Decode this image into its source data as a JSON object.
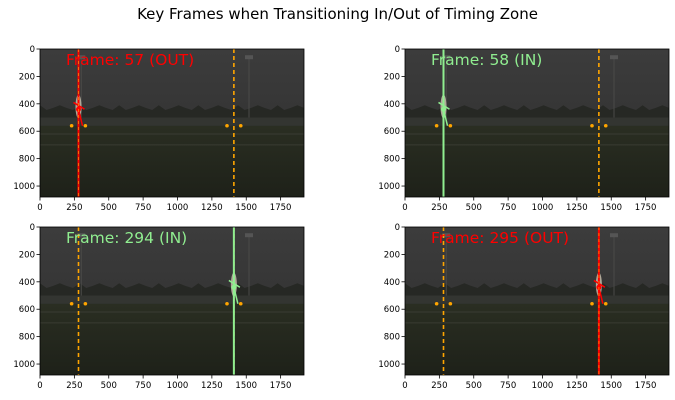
{
  "figure": {
    "suptitle": "Key Frames when Transitioning In/Out of Timing Zone"
  },
  "colors": {
    "in": "#90ee90",
    "out": "#ff0000",
    "zone_boundary": "#ffa500",
    "keypoint": "#ffa500"
  },
  "chart_data": [
    {
      "type": "image",
      "title": "",
      "label": "Frame: 57 (OUT)",
      "state": "out",
      "xlim": [
        0,
        1920
      ],
      "ylim": [
        1080,
        0
      ],
      "xticks": [
        0,
        250,
        500,
        750,
        1000,
        1250,
        1500,
        1750
      ],
      "yticks": [
        0,
        200,
        400,
        600,
        800,
        1000
      ],
      "zone_lines": [
        280,
        1410
      ],
      "marker_line": {
        "x": 280,
        "state": "out"
      },
      "runner": {
        "x": 280,
        "head_y": 380,
        "foot_y": 560
      }
    },
    {
      "type": "image",
      "title": "",
      "label": "Frame: 58 (IN)",
      "state": "in",
      "xlim": [
        0,
        1920
      ],
      "ylim": [
        1080,
        0
      ],
      "xticks": [
        0,
        250,
        500,
        750,
        1000,
        1250,
        1500,
        1750
      ],
      "yticks": [
        0,
        200,
        400,
        600,
        800,
        1000
      ],
      "zone_lines": [
        280,
        1410
      ],
      "marker_line": {
        "x": 280,
        "state": "in"
      },
      "runner": {
        "x": 280,
        "head_y": 380,
        "foot_y": 560
      }
    },
    {
      "type": "image",
      "title": "",
      "label": "Frame: 294 (IN)",
      "state": "in",
      "xlim": [
        0,
        1920
      ],
      "ylim": [
        1080,
        0
      ],
      "xticks": [
        0,
        250,
        500,
        750,
        1000,
        1250,
        1500,
        1750
      ],
      "yticks": [
        0,
        200,
        400,
        600,
        800,
        1000
      ],
      "zone_lines": [
        280,
        1410
      ],
      "marker_line": {
        "x": 1410,
        "state": "in"
      },
      "runner": {
        "x": 1410,
        "head_y": 380,
        "foot_y": 560
      }
    },
    {
      "type": "image",
      "title": "",
      "label": "Frame: 295 (OUT)",
      "state": "out",
      "xlim": [
        0,
        1920
      ],
      "ylim": [
        1080,
        0
      ],
      "xticks": [
        0,
        250,
        500,
        750,
        1000,
        1250,
        1500,
        1750
      ],
      "yticks": [
        0,
        200,
        400,
        600,
        800,
        1000
      ],
      "zone_lines": [
        280,
        1410
      ],
      "marker_line": {
        "x": 1410,
        "state": "out"
      },
      "runner": {
        "x": 1410,
        "head_y": 380,
        "foot_y": 560
      }
    }
  ]
}
